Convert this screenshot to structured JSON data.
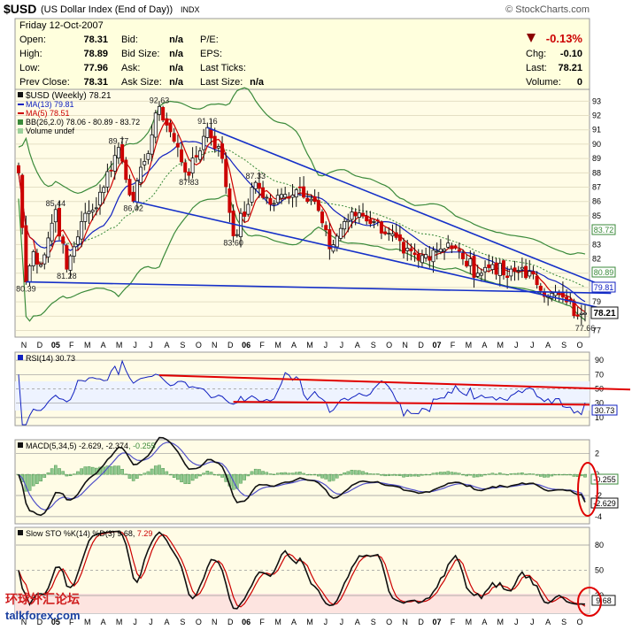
{
  "header": {
    "symbol": "$USD",
    "name": "(US Dollar Index (End of Day))",
    "exchange": "INDX",
    "source": "© StockCharts.com"
  },
  "quote": {
    "date": "Friday   12-Oct-2007",
    "open_label": "Open:",
    "open": "78.31",
    "high_label": "High:",
    "high": "78.89",
    "low_label": "Low:",
    "low": "77.96",
    "prev_label": "Prev Close:",
    "prev": "78.31",
    "bid_label": "Bid:",
    "bid": "n/a",
    "bidsize_label": "Bid Size:",
    "bidsize": "n/a",
    "ask_label": "Ask:",
    "ask": "n/a",
    "asksize_label": "Ask Size:",
    "asksize": "n/a",
    "pe_label": "P/E:",
    "eps_label": "EPS:",
    "lastticks_label": "Last Ticks:",
    "lastsize_label": "Last Size:",
    "lastsize": "n/a",
    "pct": "-0.13%",
    "chg_label": "Chg:",
    "chg": "-0.10",
    "last_label": "Last:",
    "last": "78.21",
    "vol_label": "Volume:",
    "vol": "0"
  },
  "legend": {
    "title": "$USD (Weekly) 78.21",
    "ma13": "MA(13) 79.81",
    "ma5": "MA(5) 78.51",
    "bb": "BB(26,2.0) 78.06 - 80.89 - 83.72",
    "vol": "Volume undef"
  },
  "annotations": [
    {
      "label": "80.39",
      "week": 2,
      "value": 80.39
    },
    {
      "label": "85.44",
      "week": 10,
      "value": 85.44
    },
    {
      "label": "81.28",
      "week": 13,
      "value": 81.28
    },
    {
      "label": "89.77",
      "week": 27,
      "value": 89.77
    },
    {
      "label": "86.02",
      "week": 31,
      "value": 86.02
    },
    {
      "label": "92.63",
      "week": 38,
      "value": 92.63
    },
    {
      "label": "87.83",
      "week": 46,
      "value": 87.83
    },
    {
      "label": "91.16",
      "week": 51,
      "value": 91.16
    },
    {
      "label": "83.60",
      "week": 58,
      "value": 83.6
    },
    {
      "label": "87.33",
      "week": 64,
      "value": 87.33
    },
    {
      "label": "77.66",
      "week": 153,
      "value": 77.66
    }
  ],
  "price_right_labels": {
    "bb_upper": "83.72",
    "bb_mid": "80.89",
    "ma13": "79.81",
    "last": "78.21"
  },
  "rsi": {
    "legend": "RSI(14) 30.73",
    "value_label": "30.73",
    "ticks": [
      "90",
      "70",
      "50",
      "30",
      "10"
    ]
  },
  "macd": {
    "legend_a": "MACD(5,34,5) -2.629, -2.374",
    "legend_b": ", -0.255",
    "hist_label": "-0.255",
    "macd_label": "-2.629",
    "ticks": [
      "2",
      "0",
      "-2",
      "-4"
    ]
  },
  "sto": {
    "legend_a": "Slow STO %K(14) %D(3) 9.68, ",
    "legend_b": "7.29",
    "value_label": "9.68",
    "ticks": [
      "80",
      "50",
      "20"
    ]
  },
  "x_axis": {
    "months": [
      "N",
      "D",
      "05",
      "F",
      "M",
      "A",
      "M",
      "J",
      "J",
      "A",
      "S",
      "O",
      "N",
      "D",
      "06",
      "F",
      "M",
      "A",
      "M",
      "J",
      "J",
      "A",
      "S",
      "O",
      "N",
      "D",
      "07",
      "F",
      "M",
      "A",
      "M",
      "J",
      "J",
      "A",
      "S",
      "O"
    ],
    "months_bottom": [
      "N",
      "D",
      "05",
      "F",
      "M",
      "A",
      "M",
      "J",
      "J",
      "A",
      "S",
      "O",
      "N",
      "D",
      "06",
      "F",
      "M",
      "A",
      "M",
      "J",
      "J",
      "A",
      "S",
      "O",
      "N",
      "D",
      "07",
      "F",
      "M",
      "A",
      "M",
      "J",
      "J",
      "A",
      "S",
      "O"
    ]
  },
  "watermark": {
    "cn": "环球外汇论坛",
    "site": "talkforex.com"
  },
  "chart_data": {
    "type": "candlestick",
    "title": "$USD (US Dollar Index (End of Day))",
    "period": "Weekly",
    "y_axis_ticks": [
      93,
      92,
      91,
      90,
      89,
      88,
      87,
      86,
      85,
      84,
      83,
      82,
      81,
      80,
      79,
      78,
      77
    ],
    "ylim": [
      76.6,
      93.7
    ],
    "x_range": [
      "2004-11",
      "2007-10-12"
    ],
    "weeks": 154,
    "price_pivots": [
      {
        "week": 0,
        "value": 88.0
      },
      {
        "week": 2,
        "value": 80.39
      },
      {
        "week": 4,
        "value": 82.5
      },
      {
        "week": 6,
        "value": 81.6
      },
      {
        "week": 10,
        "value": 85.44
      },
      {
        "week": 13,
        "value": 81.28
      },
      {
        "week": 17,
        "value": 84.6
      },
      {
        "week": 20,
        "value": 85.4
      },
      {
        "week": 27,
        "value": 89.77
      },
      {
        "week": 31,
        "value": 86.02
      },
      {
        "week": 34,
        "value": 88.8
      },
      {
        "week": 38,
        "value": 92.63
      },
      {
        "week": 42,
        "value": 90.2
      },
      {
        "week": 46,
        "value": 87.83
      },
      {
        "week": 51,
        "value": 91.16
      },
      {
        "week": 55,
        "value": 89.0
      },
      {
        "week": 58,
        "value": 83.6
      },
      {
        "week": 62,
        "value": 85.8
      },
      {
        "week": 64,
        "value": 87.33
      },
      {
        "week": 68,
        "value": 85.8
      },
      {
        "week": 72,
        "value": 86.5
      },
      {
        "week": 76,
        "value": 87.0
      },
      {
        "week": 80,
        "value": 86.0
      },
      {
        "week": 84,
        "value": 82.7
      },
      {
        "week": 88,
        "value": 84.6
      },
      {
        "week": 92,
        "value": 85.2
      },
      {
        "week": 96,
        "value": 84.6
      },
      {
        "week": 100,
        "value": 83.8
      },
      {
        "week": 104,
        "value": 82.4
      },
      {
        "week": 108,
        "value": 81.9
      },
      {
        "week": 112,
        "value": 82.6
      },
      {
        "week": 116,
        "value": 83.1
      },
      {
        "week": 120,
        "value": 82.0
      },
      {
        "week": 124,
        "value": 81.0
      },
      {
        "week": 128,
        "value": 81.6
      },
      {
        "week": 132,
        "value": 80.7
      },
      {
        "week": 136,
        "value": 81.4
      },
      {
        "week": 140,
        "value": 80.2
      },
      {
        "week": 144,
        "value": 79.6
      },
      {
        "week": 148,
        "value": 79.0
      },
      {
        "week": 151,
        "value": 78.0
      },
      {
        "week": 153,
        "value": 77.66
      }
    ],
    "trendlines": [
      {
        "from": {
          "week": 2,
          "value": 80.39
        },
        "to": {
          "week": 160,
          "value": 79.6
        }
      },
      {
        "from": {
          "week": 31,
          "value": 86.02
        },
        "to": {
          "week": 160,
          "value": 78.4
        }
      },
      {
        "from": {
          "week": 51,
          "value": 91.16
        },
        "to": {
          "week": 160,
          "value": 79.9
        }
      }
    ],
    "last": 78.21,
    "indicators": {
      "ma13": 79.81,
      "ma5": 78.51,
      "bb": {
        "lower": 78.06,
        "mid": 80.89,
        "upper": 83.72
      },
      "rsi14": 30.73,
      "macd": {
        "macd": -2.629,
        "signal": -2.374,
        "histogram": -0.255
      },
      "slow_sto": {
        "k": 9.68,
        "d": 7.29
      }
    }
  }
}
